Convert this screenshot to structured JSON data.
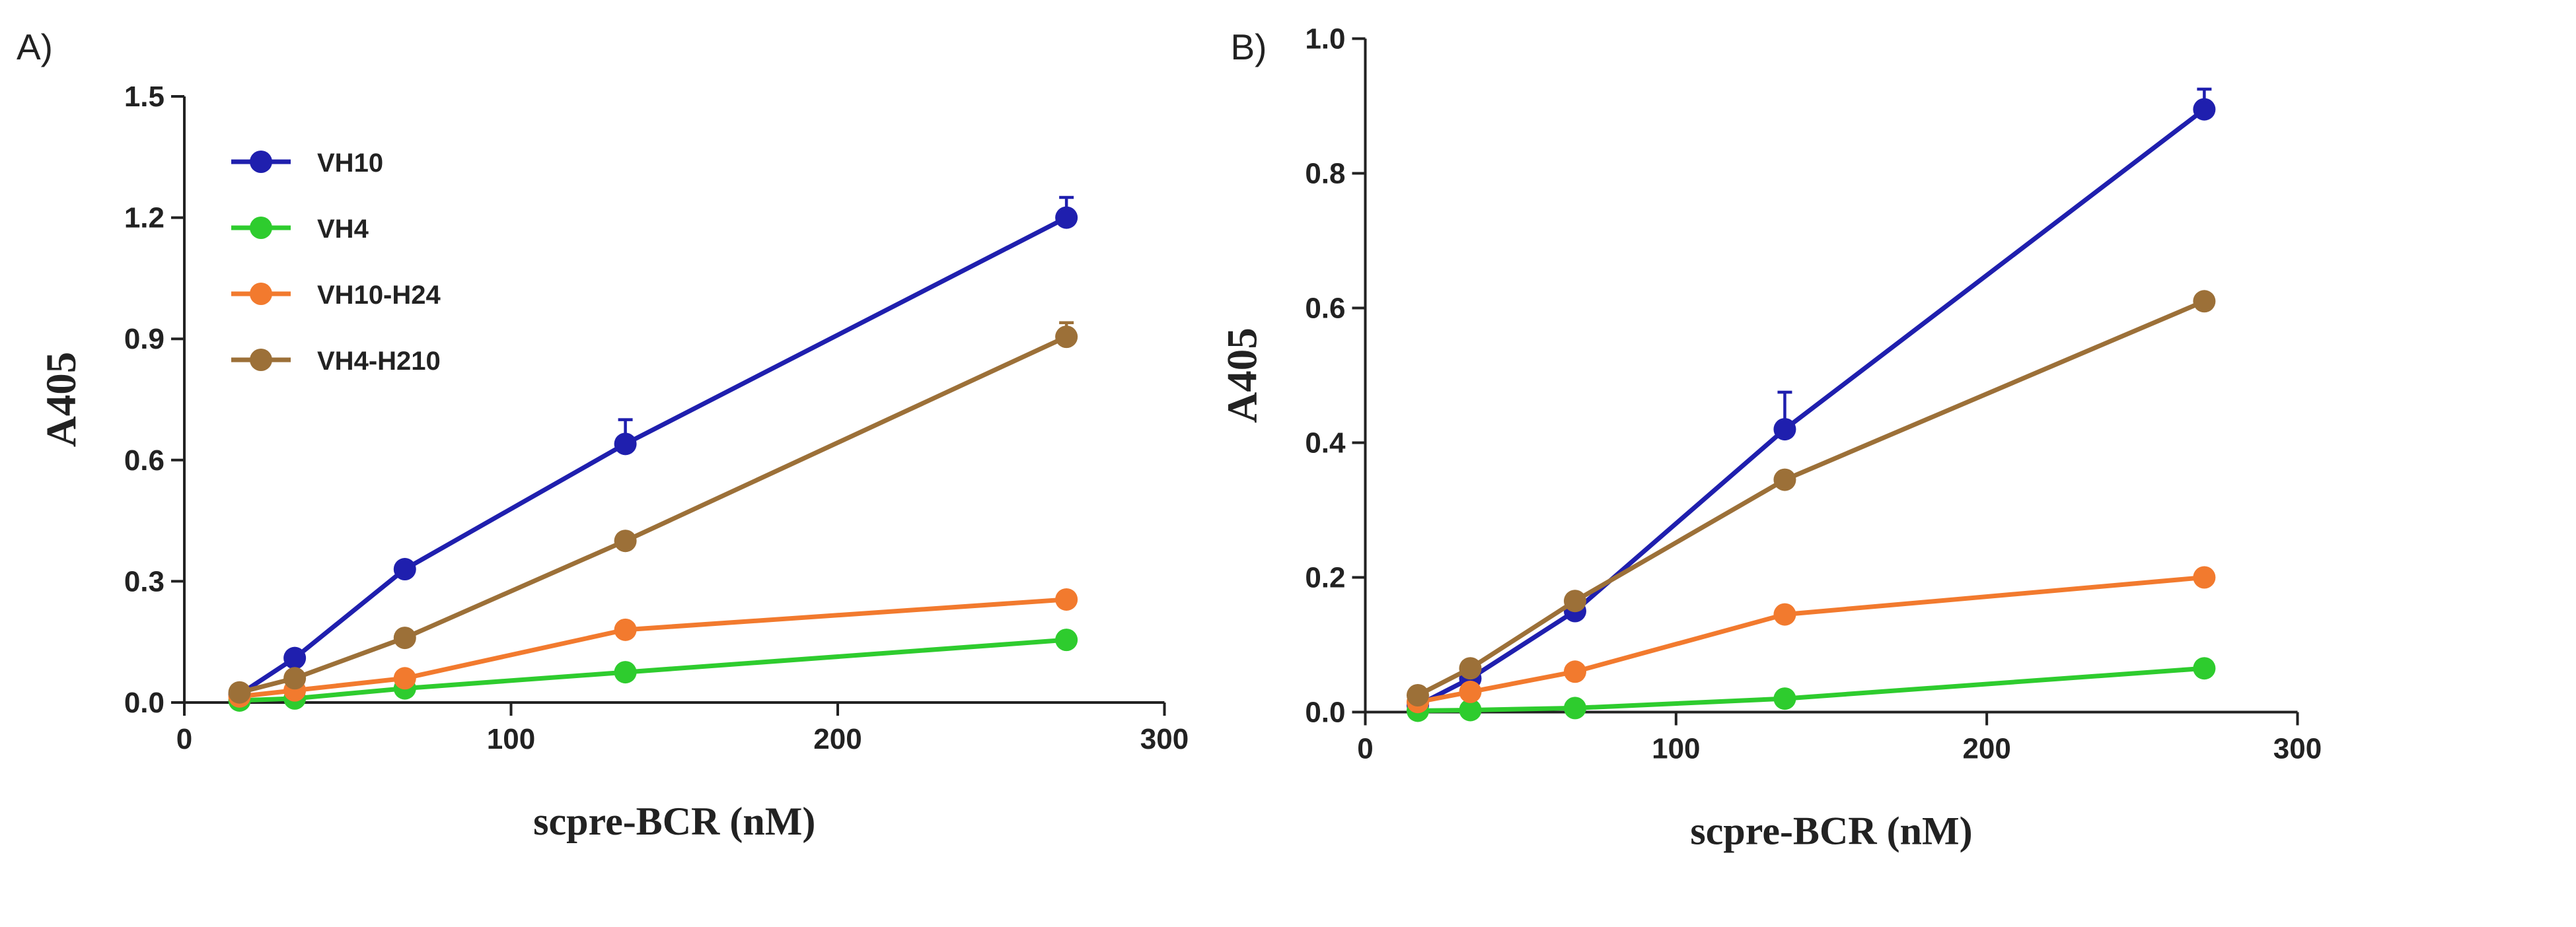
{
  "chart_data": [
    {
      "panel_label": "A)",
      "type": "line",
      "xlabel": "scpre-BCR     (nM)",
      "ylabel": "A405",
      "xlim": [
        0,
        300
      ],
      "ylim": [
        0,
        1.5
      ],
      "xticks": [
        0,
        100,
        200,
        300
      ],
      "yticks": [
        0.0,
        0.3,
        0.6,
        0.9,
        1.2,
        1.5
      ],
      "ytick_labels": [
        "0.0",
        "0.3",
        "0.6",
        "0.9",
        "1.2",
        "1.5"
      ],
      "legend_position": "top-left",
      "error_bars": true,
      "series": [
        {
          "name": "VH10",
          "color": "#1f1fae",
          "x": [
            16.9,
            33.8,
            67.5,
            135,
            270
          ],
          "y": [
            0.02,
            0.11,
            0.33,
            0.64,
            1.2
          ],
          "err": [
            0,
            0,
            0,
            0.06,
            0.05
          ]
        },
        {
          "name": "VH4",
          "color": "#2ecc2e",
          "x": [
            16.9,
            33.8,
            67.5,
            135,
            270
          ],
          "y": [
            0.005,
            0.01,
            0.035,
            0.075,
            0.155
          ],
          "err": [
            0,
            0,
            0,
            0,
            0
          ]
        },
        {
          "name": "VH10-H24",
          "color": "#f27a2e",
          "x": [
            16.9,
            33.8,
            67.5,
            135,
            270
          ],
          "y": [
            0.015,
            0.03,
            0.06,
            0.18,
            0.255
          ],
          "err": [
            0,
            0,
            0,
            0,
            0
          ]
        },
        {
          "name": "VH4-H210",
          "color": "#9c7038",
          "x": [
            16.9,
            33.8,
            67.5,
            135,
            270
          ],
          "y": [
            0.025,
            0.06,
            0.16,
            0.4,
            0.905
          ],
          "err": [
            0,
            0,
            0,
            0,
            0.035
          ]
        }
      ]
    },
    {
      "panel_label": "B)",
      "type": "line",
      "xlabel": "scpre-BCR     (nM)",
      "ylabel": "A405",
      "xlim": [
        0,
        300
      ],
      "ylim": [
        0,
        1.0
      ],
      "xticks": [
        0,
        100,
        200,
        300
      ],
      "yticks": [
        0.0,
        0.2,
        0.4,
        0.6,
        0.8,
        1.0
      ],
      "ytick_labels": [
        "0.0",
        "0.2",
        "0.4",
        "0.6",
        "0.8",
        "1.0"
      ],
      "error_bars": true,
      "series": [
        {
          "color": "#1f1fae",
          "x": [
            16.9,
            33.8,
            67.5,
            135,
            270
          ],
          "y": [
            0.01,
            0.05,
            0.15,
            0.42,
            0.895
          ],
          "err": [
            0,
            0,
            0,
            0.055,
            0.03
          ]
        },
        {
          "color": "#2ecc2e",
          "x": [
            16.9,
            33.8,
            67.5,
            135,
            270
          ],
          "y": [
            0.002,
            0.003,
            0.006,
            0.02,
            0.065
          ],
          "err": [
            0,
            0,
            0,
            0,
            0
          ]
        },
        {
          "color": "#f27a2e",
          "x": [
            16.9,
            33.8,
            67.5,
            135,
            270
          ],
          "y": [
            0.015,
            0.03,
            0.06,
            0.145,
            0.2
          ],
          "err": [
            0,
            0,
            0,
            0,
            0
          ]
        },
        {
          "color": "#9c7038",
          "x": [
            16.9,
            33.8,
            67.5,
            135,
            270
          ],
          "y": [
            0.025,
            0.065,
            0.165,
            0.345,
            0.61
          ],
          "err": [
            0,
            0,
            0,
            0,
            0
          ]
        }
      ]
    }
  ]
}
